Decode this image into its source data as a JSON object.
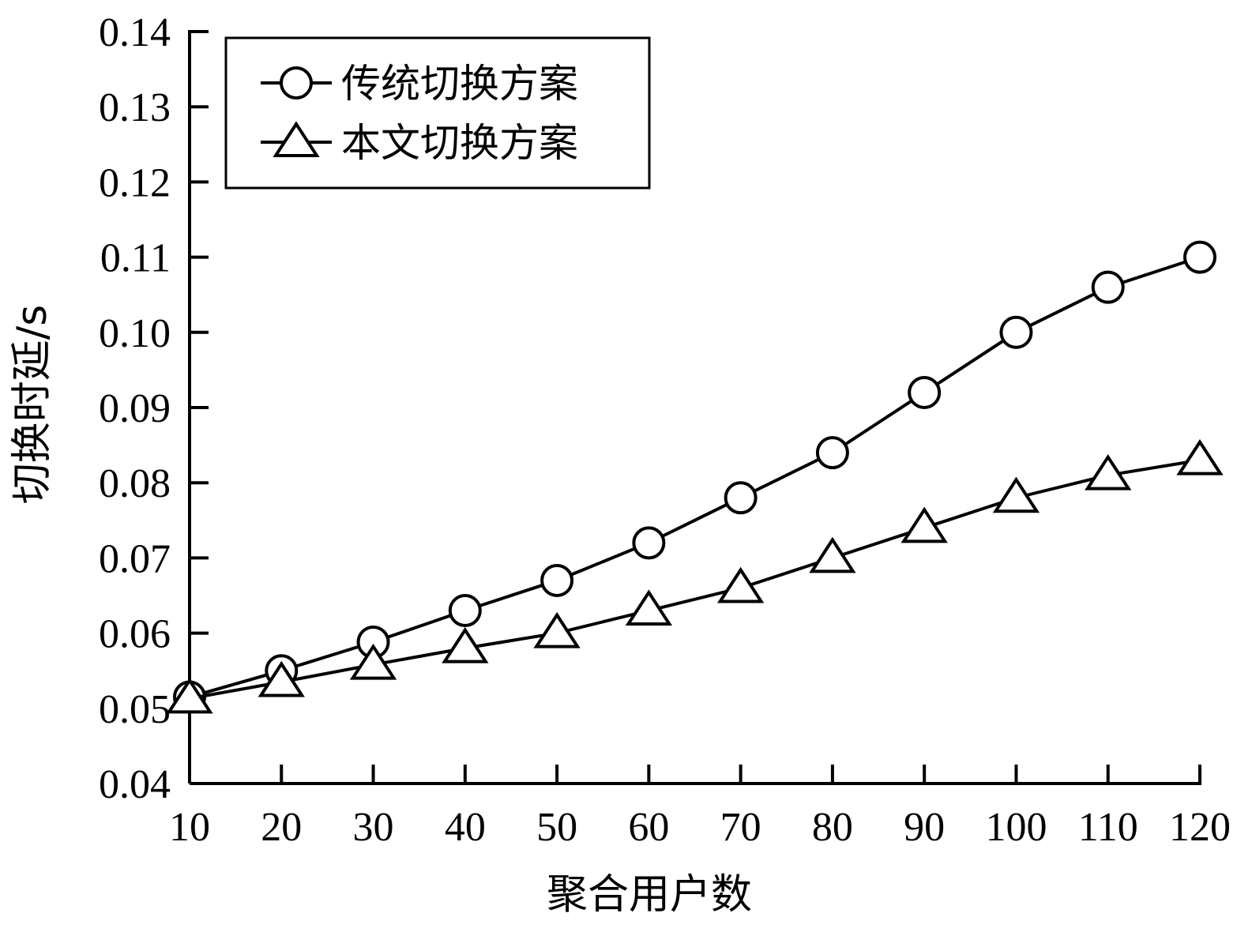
{
  "chart_data": {
    "type": "line",
    "title": "",
    "xlabel": "聚合用户数",
    "ylabel": "切换时延/s",
    "xlim": [
      10,
      120
    ],
    "ylim": [
      0.04,
      0.14
    ],
    "x_ticks": [
      "10",
      "20",
      "30",
      "40",
      "50",
      "60",
      "70",
      "80",
      "90",
      "100",
      "110",
      "120"
    ],
    "y_ticks": [
      "0.04",
      "0.05",
      "0.06",
      "0.07",
      "0.08",
      "0.09",
      "0.10",
      "0.11",
      "0.12",
      "0.13",
      "0.14"
    ],
    "x": [
      10,
      20,
      30,
      40,
      50,
      60,
      70,
      80,
      90,
      100,
      110,
      120
    ],
    "grid": false,
    "legend": "top-left",
    "series": [
      {
        "name": "传统切换方案",
        "marker": "circle",
        "color": "#000000",
        "values": [
          0.0515,
          0.055,
          0.0588,
          0.063,
          0.067,
          0.072,
          0.078,
          0.084,
          0.092,
          0.1,
          0.106,
          0.11
        ]
      },
      {
        "name": "本文切换方案",
        "marker": "triangle",
        "color": "#000000",
        "values": [
          0.0513,
          0.0535,
          0.0558,
          0.058,
          0.06,
          0.063,
          0.066,
          0.07,
          0.074,
          0.078,
          0.081,
          0.083
        ]
      }
    ]
  }
}
